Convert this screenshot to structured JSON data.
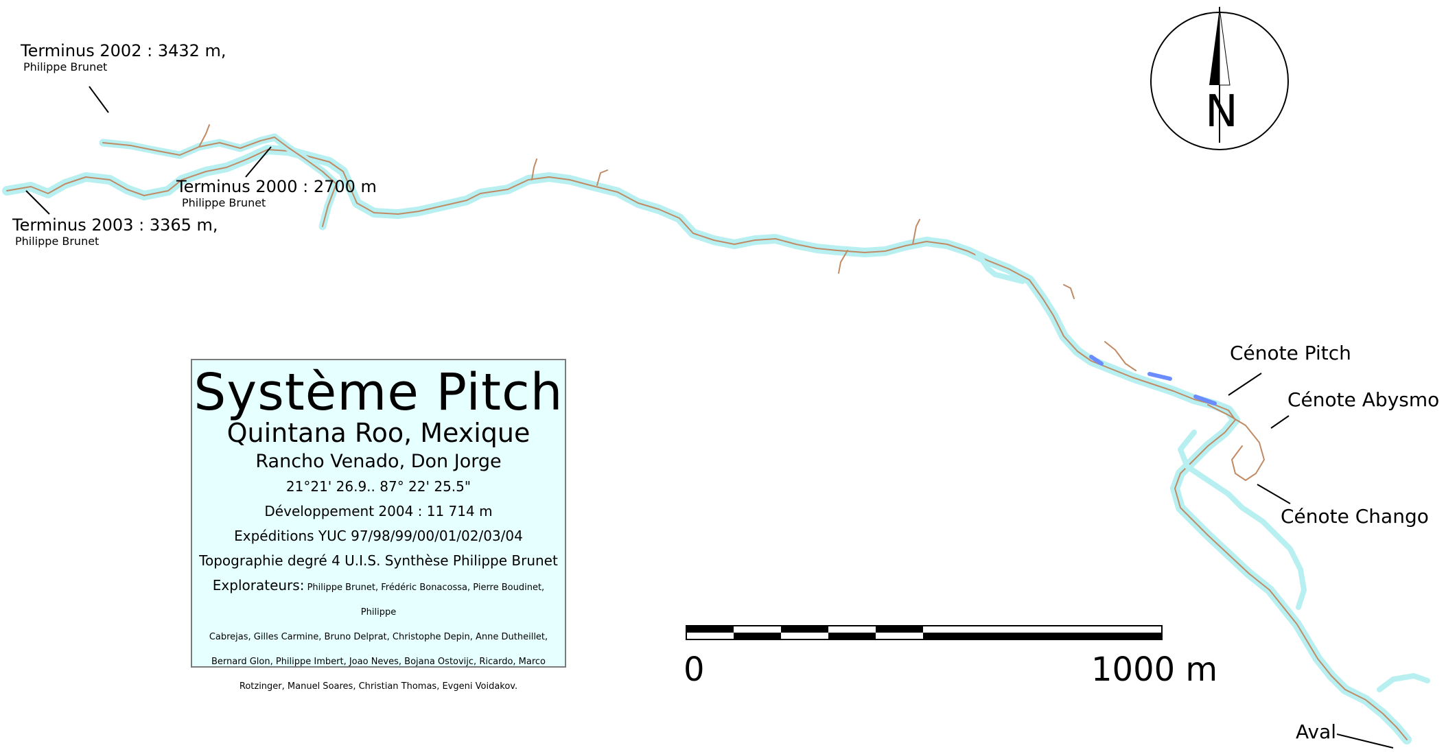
{
  "labels": {
    "terminus_2002": "Terminus 2002 : 3432 m,",
    "terminus_2002_author": "Philippe Brunet",
    "terminus_2000": "Terminus 2000 : 2700 m",
    "terminus_2000_author": "Philippe Brunet",
    "terminus_2003": "Terminus 2003 : 3365 m,",
    "terminus_2003_author": "Philippe Brunet",
    "cenote_pitch": "Cénote Pitch",
    "cenote_abysmo": "Cénote Abysmo",
    "cenote_chango": "Cénote Chango",
    "aval": "Aval"
  },
  "legend": {
    "title": "Système Pitch",
    "subtitle": "Quintana Roo, Mexique",
    "place": "Rancho Venado, Don Jorge",
    "coordinates": "21°21' 26.9..  87° 22' 25.5\"",
    "development": "Développement 2004 : 11 714 m",
    "expeditions": "Expéditions YUC 97/98/99/00/01/02/03/04",
    "topography": "Topographie degré 4 U.I.S. Synthèse Philippe Brunet",
    "explorers_label": "Explorateurs:",
    "explorers_line1": "Philippe Brunet, Frédéric Bonacossa, Pierre Boudinet, Philippe",
    "explorers_line2": "Cabrejas,   Gilles Carmine, Bruno Delprat, Christophe Depin, Anne Dutheillet,",
    "explorers_line3": "Bernard Glon, Philippe Imbert, Joao Neves, Bojana Ostovijc, Ricardo, Marco",
    "explorers_line4": "Rotzinger, Manuel Soares, Christian Thomas, Evgeni Voidakov."
  },
  "scale": {
    "start_label": "0",
    "end_label": "1000 m"
  },
  "north_arrow": {
    "letter": "N",
    "icon": "north-arrow-icon"
  },
  "colors": {
    "water": "#b8f0f2",
    "wall": "#c08a64",
    "deep_water": "#6a8cff"
  }
}
